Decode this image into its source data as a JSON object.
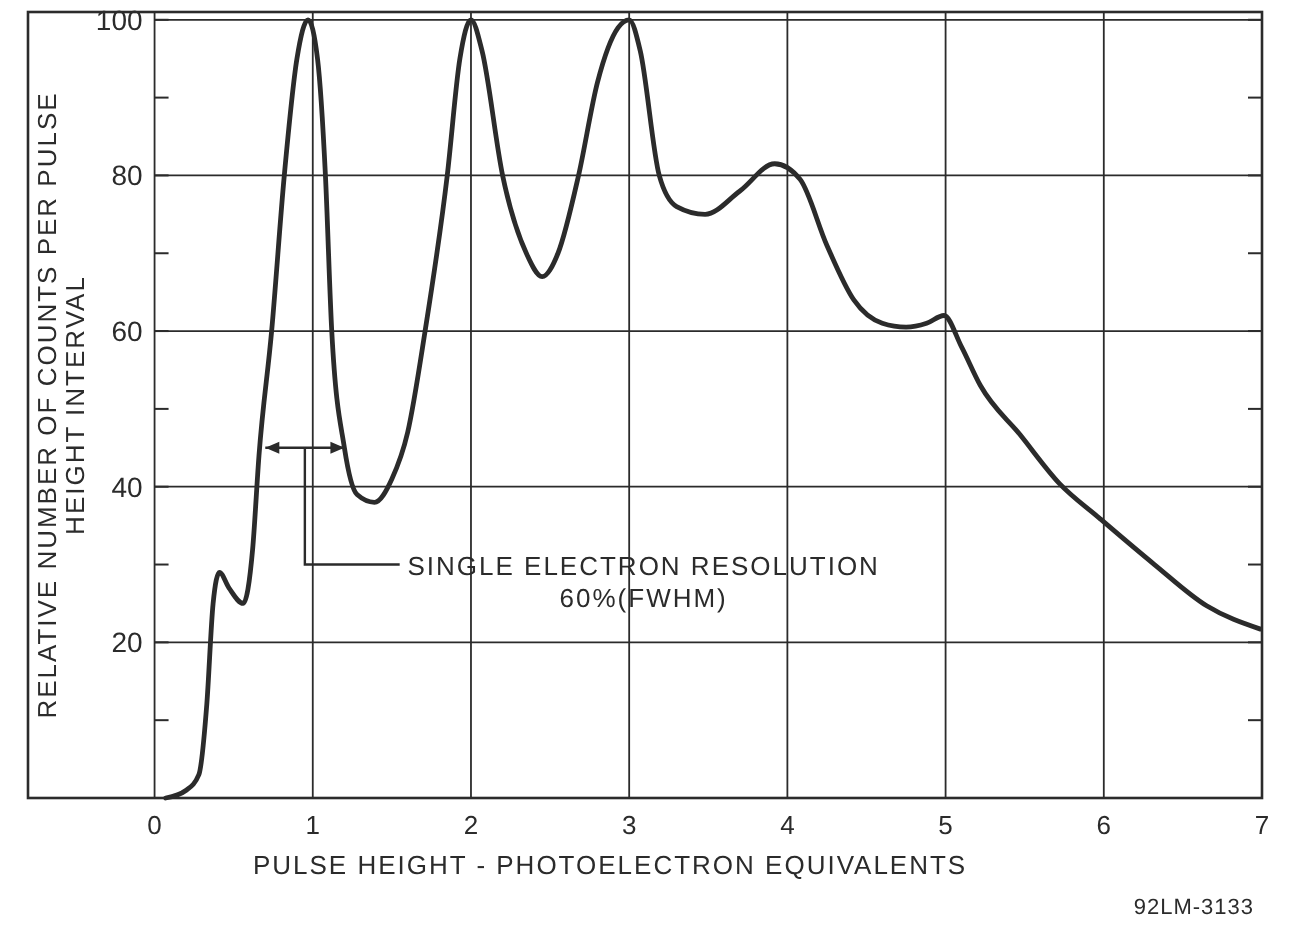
{
  "chart_data": {
    "type": "line",
    "xlabel": "PULSE HEIGHT - PHOTOELECTRON EQUIVALENTS",
    "ylabel": "RELATIVE NUMBER OF COUNTS PER PULSE\nHEIGHT INTERVAL",
    "x": [
      0.07,
      0.2,
      0.28,
      0.33,
      0.37,
      0.41,
      0.47,
      0.56,
      0.62,
      0.66,
      0.74,
      0.82,
      0.9,
      0.97,
      1.03,
      1.08,
      1.12,
      1.2,
      1.28,
      1.39,
      1.5,
      1.6,
      1.71,
      1.85,
      1.93,
      2.0,
      2.07,
      2.2,
      2.35,
      2.45,
      2.55,
      2.68,
      2.8,
      2.93,
      3.0,
      3.07,
      3.19,
      3.3,
      3.48,
      3.7,
      3.92,
      4.08,
      4.25,
      4.42,
      4.6,
      4.75,
      4.88,
      4.99,
      5.1,
      5.22,
      5.47,
      5.72,
      5.97,
      6.32,
      6.65,
      6.99
    ],
    "series": [
      {
        "color": "#2b2b2b",
        "values": [
          0,
          1,
          3,
          12,
          25,
          29,
          27,
          25,
          32,
          44,
          60,
          80,
          95,
          100,
          95,
          80,
          60,
          45,
          39,
          38,
          41,
          47,
          60,
          80,
          95,
          100,
          96,
          80,
          70,
          67,
          70,
          80,
          92,
          99,
          100,
          96,
          80,
          76,
          75,
          78,
          81.5,
          79.5,
          71,
          64,
          61,
          60.5,
          61,
          62,
          58,
          53,
          46.7,
          40.4,
          36,
          30,
          24.7,
          21.7
        ]
      }
    ],
    "xlim": [
      -0.8,
      7
    ],
    "ylim": [
      0,
      101
    ],
    "xticks": [
      0,
      1,
      2,
      3,
      4,
      5,
      6,
      7
    ],
    "yticks": [
      {
        "value": 10,
        "label": null
      },
      20,
      {
        "value": 30,
        "label": null
      },
      40,
      {
        "value": 50,
        "label": null
      },
      60,
      {
        "value": 70,
        "label": null
      },
      80,
      {
        "value": 90,
        "label": null
      },
      100
    ],
    "grid": true,
    "line_style": "solid",
    "marker": "none",
    "annotations": [
      "SINGLE ELECTRON RESOLUTION\n60%(FWHM)",
      "92LM-3133"
    ]
  }
}
